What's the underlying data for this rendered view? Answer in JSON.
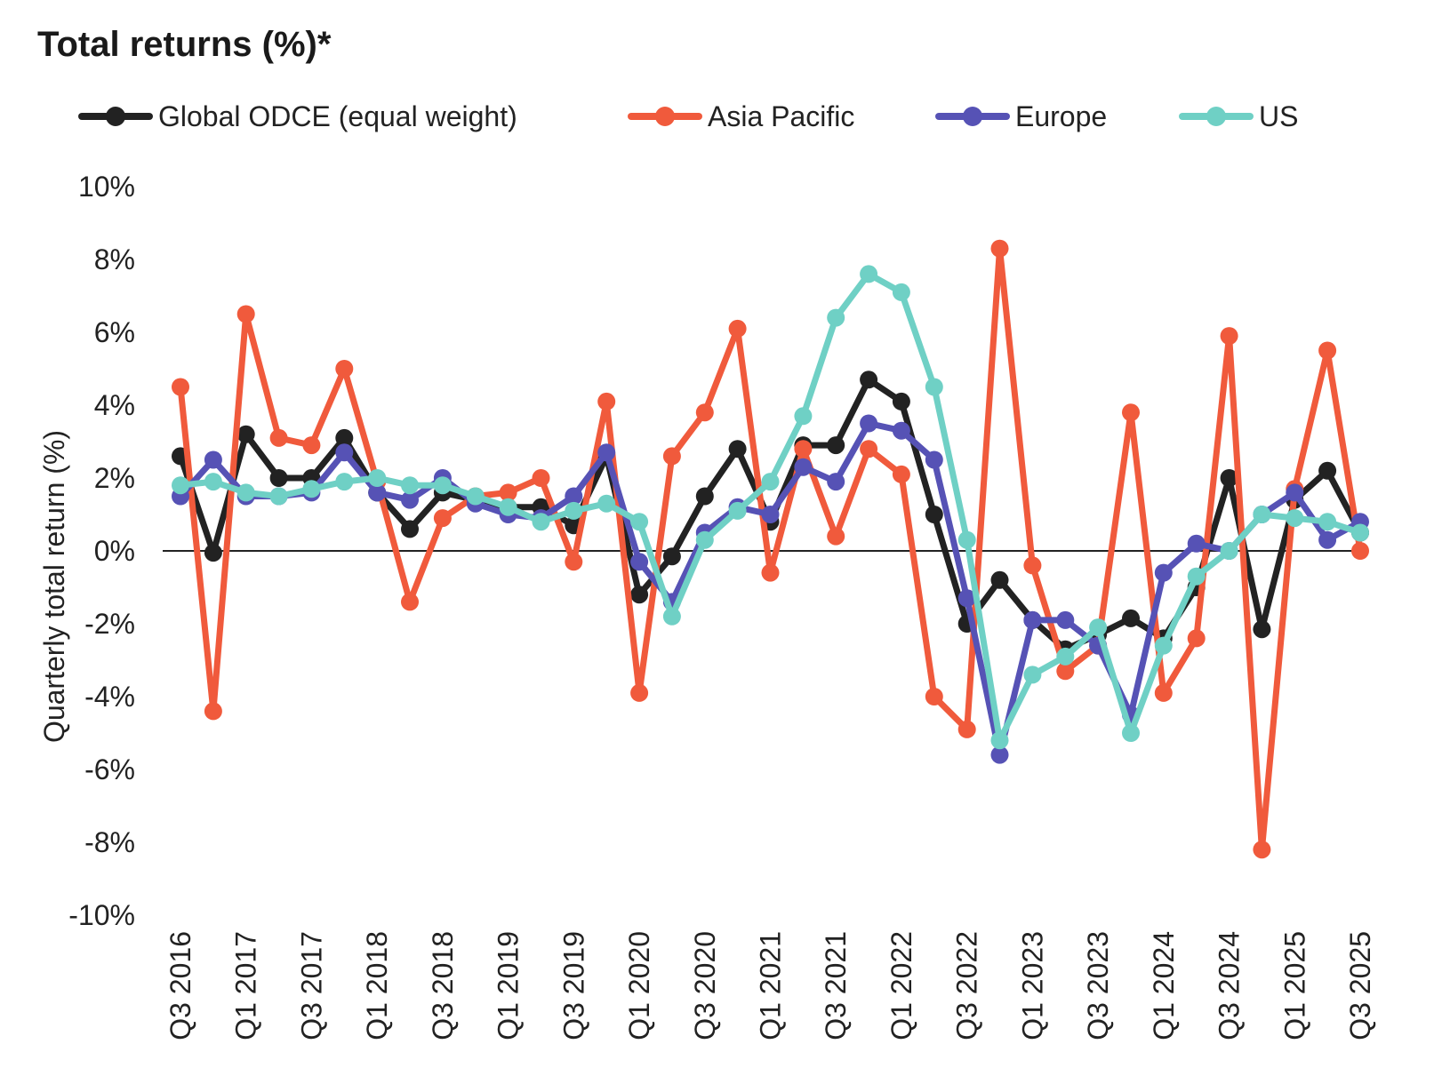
{
  "chart_data": {
    "type": "line",
    "title": "Total returns (%)*",
    "xlabel": "",
    "ylabel": "Quarterly total return (%)",
    "ylim": [
      -10,
      10
    ],
    "yticks": [
      10,
      8,
      6,
      4,
      2,
      0,
      -2,
      -4,
      -6,
      -8,
      -10
    ],
    "ytick_labels": [
      "10%",
      "8%",
      "6%",
      "4%",
      "2%",
      "0%",
      "-2%",
      "-4%",
      "-6%",
      "-8%",
      "-10%"
    ],
    "legend_position": "top",
    "categories": [
      "Q3 2016",
      "Q4 2016",
      "Q1 2017",
      "Q2 2017",
      "Q3 2017",
      "Q4 2017",
      "Q1 2018",
      "Q2 2018",
      "Q3 2018",
      "Q4 2018",
      "Q1 2019",
      "Q2 2019",
      "Q3 2019",
      "Q4 2019",
      "Q1 2020",
      "Q2 2020",
      "Q3 2020",
      "Q4 2020",
      "Q1 2021",
      "Q2 2021",
      "Q3 2021",
      "Q4 2021",
      "Q1 2022",
      "Q2 2022",
      "Q3 2022",
      "Q4 2022",
      "Q1 2023",
      "Q2 2023",
      "Q3 2023",
      "Q4 2023",
      "Q1 2024",
      "Q2 2024",
      "Q3 2024",
      "Q4 2024",
      "Q1 2025",
      "Q2 2025",
      "Q3 2025"
    ],
    "x_tick_labels": [
      "Q3 2016",
      "Q1 2017",
      "Q3 2017",
      "Q1 2018",
      "Q3 2018",
      "Q1 2019",
      "Q3 2019",
      "Q1 2020",
      "Q3 2020",
      "Q1 2021",
      "Q3 2021",
      "Q1 2022",
      "Q3 2022",
      "Q1 2023",
      "Q3 2023",
      "Q1 2024",
      "Q3 2024",
      "Q1 2025",
      "Q3 2025"
    ],
    "series": [
      {
        "name": "Global ODCE (equal weight)",
        "color": "#222222",
        "values": [
          2.6,
          -0.05,
          3.2,
          2.0,
          2.0,
          3.1,
          1.6,
          0.6,
          1.6,
          1.4,
          1.2,
          1.2,
          0.7,
          2.6,
          -1.2,
          -0.15,
          1.5,
          2.8,
          0.8,
          2.9,
          2.9,
          4.7,
          4.1,
          1.0,
          -2.0,
          -0.8,
          -1.9,
          -2.7,
          -2.3,
          -1.85,
          -2.4,
          -1.0,
          2.0,
          -2.15,
          1.4,
          2.2,
          0.5
        ]
      },
      {
        "name": "Asia Pacific",
        "color": "#f05a3c",
        "values": [
          4.5,
          -4.4,
          6.5,
          3.1,
          2.9,
          5.0,
          1.9,
          -1.4,
          0.9,
          1.5,
          1.6,
          2.0,
          -0.3,
          4.1,
          -3.9,
          2.6,
          3.8,
          6.1,
          -0.6,
          2.8,
          0.4,
          2.8,
          2.1,
          -4.0,
          -4.9,
          8.3,
          -0.4,
          -3.3,
          -2.6,
          3.8,
          -3.9,
          -2.4,
          5.9,
          -8.2,
          1.7,
          5.5,
          0.0
        ]
      },
      {
        "name": "Europe",
        "color": "#5652b5",
        "values": [
          1.5,
          2.5,
          1.5,
          1.5,
          1.6,
          2.7,
          1.6,
          1.4,
          2.0,
          1.3,
          1.0,
          0.9,
          1.5,
          2.7,
          -0.3,
          -1.4,
          0.5,
          1.2,
          1.0,
          2.3,
          1.9,
          3.5,
          3.3,
          2.5,
          -1.3,
          -5.6,
          -1.9,
          -1.9,
          -2.6,
          -4.5,
          -0.6,
          0.2,
          0.0,
          1.0,
          1.6,
          0.3,
          0.8
        ]
      },
      {
        "name": "US",
        "color": "#6fd0c5",
        "values": [
          1.8,
          1.9,
          1.6,
          1.5,
          1.7,
          1.9,
          2.0,
          1.8,
          1.8,
          1.5,
          1.2,
          0.8,
          1.1,
          1.3,
          0.8,
          -1.8,
          0.3,
          1.1,
          1.9,
          3.7,
          6.4,
          7.6,
          7.1,
          4.5,
          0.3,
          -5.2,
          -3.4,
          -2.9,
          -2.1,
          -5.0,
          -2.6,
          -0.7,
          0.0,
          1.0,
          0.9,
          0.8,
          0.5
        ]
      }
    ]
  }
}
